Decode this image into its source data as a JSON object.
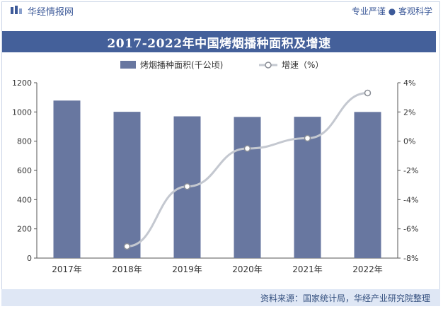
{
  "header": {
    "brand": "华经情报网",
    "slogan": "专业严谨 ● 客观科学"
  },
  "footer": {
    "source": "资料来源：国家统计局，华经产业研究院整理"
  },
  "colors": {
    "bar": "#6877a0",
    "line": "#c4c8d0",
    "title_bg": "#44609a",
    "brand": "#3d5a99"
  },
  "chart_data": {
    "type": "bar",
    "title": "2017-2022年中国烤烟播种面积及增速",
    "categories": [
      "2017年",
      "2018年",
      "2019年",
      "2020年",
      "2021年",
      "2022年"
    ],
    "series": [
      {
        "name": "烤烟播种面积(千公顷)",
        "type": "bar",
        "axis": "left",
        "values": [
          1078,
          1001,
          970,
          966,
          967,
          1000
        ]
      },
      {
        "name": "增速（%）",
        "type": "line",
        "axis": "right",
        "values": [
          null,
          -7.2,
          -3.1,
          -0.5,
          0.2,
          3.3
        ]
      }
    ],
    "y_left": {
      "min": 0,
      "max": 1200,
      "ticks": [
        0,
        200,
        400,
        600,
        800,
        1000,
        1200
      ]
    },
    "y_right": {
      "min": -8,
      "max": 4,
      "ticks": [
        "-8%",
        "-6%",
        "-4%",
        "-2%",
        "0%",
        "2%",
        "4%"
      ]
    },
    "legend_position": "top",
    "grid": false
  }
}
